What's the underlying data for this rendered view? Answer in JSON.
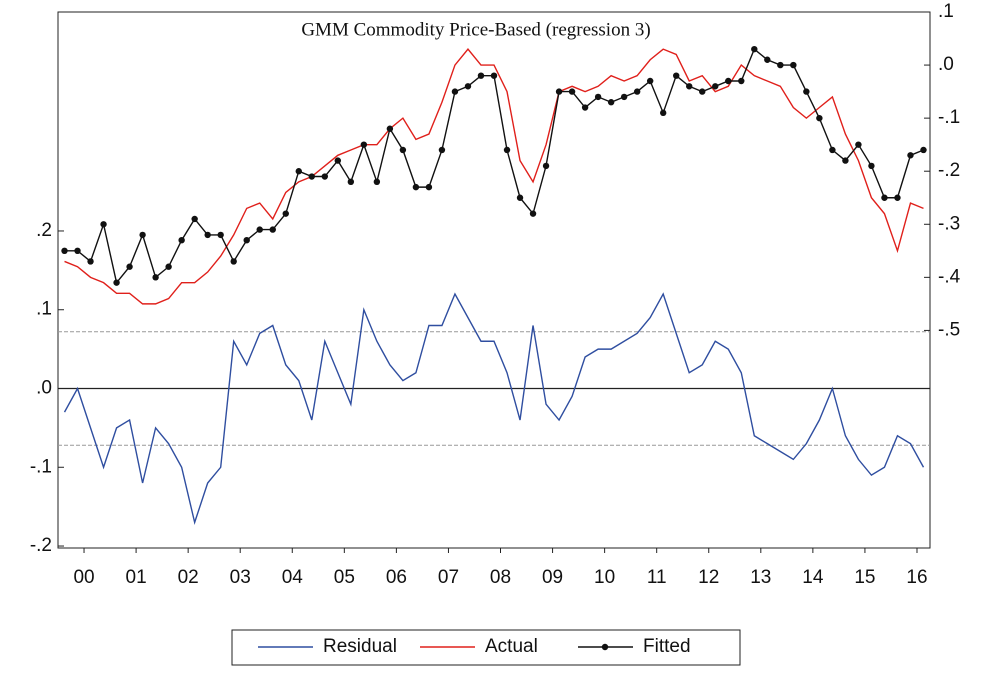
{
  "chart_data": {
    "type": "line",
    "title": "GMM Commodity Price-Based (regression 3)",
    "x": [
      2000.125,
      2000.375,
      2000.625,
      2000.875,
      2001.125,
      2001.375,
      2001.625,
      2001.875,
      2002.125,
      2002.375,
      2002.625,
      2002.875,
      2003.125,
      2003.375,
      2003.625,
      2003.875,
      2004.125,
      2004.375,
      2004.625,
      2004.875,
      2005.125,
      2005.375,
      2005.625,
      2005.875,
      2006.125,
      2006.375,
      2006.625,
      2006.875,
      2007.125,
      2007.375,
      2007.625,
      2007.875,
      2008.125,
      2008.375,
      2008.625,
      2008.875,
      2009.125,
      2009.375,
      2009.625,
      2009.875,
      2010.125,
      2010.375,
      2010.625,
      2010.875,
      2011.125,
      2011.375,
      2011.625,
      2011.875,
      2012.125,
      2012.375,
      2012.625,
      2012.875,
      2013.125,
      2013.375,
      2013.625,
      2013.875,
      2014.125,
      2014.375,
      2014.625,
      2014.875,
      2015.125,
      2015.375,
      2015.625,
      2015.875,
      2016.125,
      2016.375,
      2016.625
    ],
    "xlim": [
      2000,
      2016.75
    ],
    "xticks": [
      {
        "value": 2000.5,
        "label": "00"
      },
      {
        "value": 2001.5,
        "label": "01"
      },
      {
        "value": 2002.5,
        "label": "02"
      },
      {
        "value": 2003.5,
        "label": "03"
      },
      {
        "value": 2004.5,
        "label": "04"
      },
      {
        "value": 2005.5,
        "label": "05"
      },
      {
        "value": 2006.5,
        "label": "06"
      },
      {
        "value": 2007.5,
        "label": "07"
      },
      {
        "value": 2008.5,
        "label": "08"
      },
      {
        "value": 2009.5,
        "label": "09"
      },
      {
        "value": 2010.5,
        "label": "10"
      },
      {
        "value": 2011.5,
        "label": "11"
      },
      {
        "value": 2012.5,
        "label": "12"
      },
      {
        "value": 2013.5,
        "label": "13"
      },
      {
        "value": 2014.5,
        "label": "14"
      },
      {
        "value": 2015.5,
        "label": "15"
      },
      {
        "value": 2016.5,
        "label": "16"
      }
    ],
    "ylim": [
      -0.2025,
      0.478
    ],
    "yticks": [
      {
        "value": -0.2,
        "label": "-.2"
      },
      {
        "value": -0.1,
        "label": "-.1"
      },
      {
        "value": 0,
        "label": ".0"
      },
      {
        "value": 0.1,
        "label": ".1"
      },
      {
        "value": 0.2,
        "label": ".2"
      }
    ],
    "y2lim": [
      -0.91,
      0.1
    ],
    "y2ticks": [
      {
        "value": -0.5,
        "label": "-.5"
      },
      {
        "value": -0.4,
        "label": "-.4"
      },
      {
        "value": -0.3,
        "label": "-.3"
      },
      {
        "value": -0.2,
        "label": "-.2"
      },
      {
        "value": -0.1,
        "label": "-.1"
      },
      {
        "value": 0,
        "label": ".0"
      },
      {
        "value": 0.1,
        "label": ".1"
      }
    ],
    "reference_lines": [
      0.072,
      -0.072
    ],
    "series": [
      {
        "name": "Residual",
        "color": "#2f4ea0",
        "values": [
          -0.03,
          0.0,
          -0.05,
          -0.1,
          -0.05,
          -0.04,
          -0.12,
          -0.05,
          -0.07,
          -0.1,
          -0.17,
          -0.12,
          -0.1,
          0.06,
          0.03,
          0.07,
          0.08,
          0.03,
          0.01,
          -0.04,
          0.06,
          0.02,
          -0.02,
          0.1,
          0.06,
          0.03,
          0.01,
          0.02,
          0.08,
          0.08,
          0.12,
          0.09,
          0.06,
          0.06,
          0.02,
          -0.04,
          0.08,
          -0.02,
          -0.04,
          -0.01,
          0.04,
          0.05,
          0.05,
          0.06,
          0.07,
          0.09,
          0.12,
          0.07,
          0.02,
          0.03,
          0.06,
          0.05,
          0.02,
          -0.06,
          -0.07,
          -0.08,
          -0.09,
          -0.07,
          -0.04,
          0.0,
          -0.06,
          -0.09,
          -0.11,
          -0.1,
          -0.06,
          -0.07,
          -0.1
        ]
      },
      {
        "name": "Actual",
        "color": "#e0201b",
        "axis": "y2",
        "values": [
          -0.37,
          -0.38,
          -0.4,
          -0.41,
          -0.43,
          -0.43,
          -0.45,
          -0.45,
          -0.44,
          -0.41,
          -0.41,
          -0.39,
          -0.36,
          -0.32,
          -0.27,
          -0.26,
          -0.29,
          -0.24,
          -0.22,
          -0.21,
          -0.19,
          -0.17,
          -0.16,
          -0.15,
          -0.15,
          -0.12,
          -0.1,
          -0.14,
          -0.13,
          -0.07,
          0.0,
          0.03,
          0.0,
          0.0,
          -0.05,
          -0.18,
          -0.22,
          -0.15,
          -0.05,
          -0.04,
          -0.05,
          -0.04,
          -0.02,
          -0.03,
          -0.02,
          0.01,
          0.03,
          0.02,
          -0.03,
          -0.02,
          -0.05,
          -0.04,
          0.0,
          -0.02,
          -0.03,
          -0.04,
          -0.08,
          -0.1,
          -0.08,
          -0.06,
          -0.13,
          -0.18,
          -0.25,
          -0.28,
          -0.35,
          -0.26,
          -0.27
        ]
      },
      {
        "name": "Fitted",
        "color": "#111111",
        "axis": "y2",
        "values": [
          -0.35,
          -0.35,
          -0.37,
          -0.3,
          -0.41,
          -0.38,
          -0.32,
          -0.4,
          -0.38,
          -0.33,
          -0.29,
          -0.32,
          -0.32,
          -0.37,
          -0.33,
          -0.31,
          -0.31,
          -0.28,
          -0.2,
          -0.21,
          -0.21,
          -0.18,
          -0.22,
          -0.15,
          -0.22,
          -0.12,
          -0.16,
          -0.23,
          -0.23,
          -0.16,
          -0.05,
          -0.04,
          -0.02,
          -0.02,
          -0.16,
          -0.25,
          -0.28,
          -0.19,
          -0.05,
          -0.05,
          -0.08,
          -0.06,
          -0.07,
          -0.06,
          -0.05,
          -0.03,
          -0.09,
          -0.02,
          -0.04,
          -0.05,
          -0.04,
          -0.03,
          -0.03,
          0.03,
          0.01,
          0.0,
          0.0,
          -0.05,
          -0.1,
          -0.16,
          -0.18,
          -0.15,
          -0.19,
          -0.25,
          -0.25,
          -0.17,
          -0.16
        ]
      }
    ]
  }
}
